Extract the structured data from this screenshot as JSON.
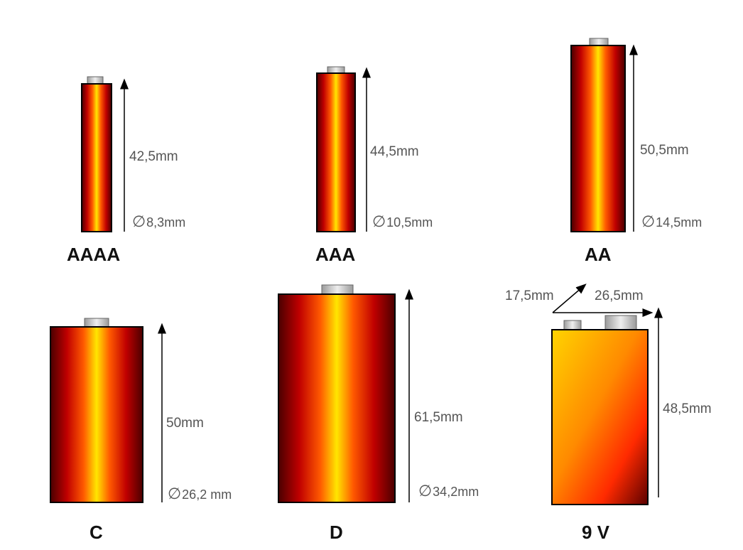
{
  "batteries": [
    {
      "id": "aaaa",
      "name": "AAAA",
      "height": "42,5mm",
      "diameter": "8,3mm"
    },
    {
      "id": "aaa",
      "name": "AAA",
      "height": "44,5mm",
      "diameter": "10,5mm"
    },
    {
      "id": "aa",
      "name": "AA",
      "height": "50,5mm",
      "diameter": "14,5mm"
    },
    {
      "id": "c",
      "name": "C",
      "height": "50mm",
      "diameter": "26,2 mm"
    },
    {
      "id": "d",
      "name": "D",
      "height": "61,5mm",
      "diameter": "34,2mm"
    },
    {
      "id": "9v",
      "name": "9 V",
      "height": "48,5mm",
      "depth": "17,5mm",
      "width": "26,5mm"
    }
  ],
  "diameter_symbol": "∅",
  "colors": {
    "outer": "#4a0000",
    "mid": "#ff2000",
    "center": "#ffe600",
    "cap": "#d9d9d9",
    "line": "#000000",
    "text": "#555555"
  }
}
